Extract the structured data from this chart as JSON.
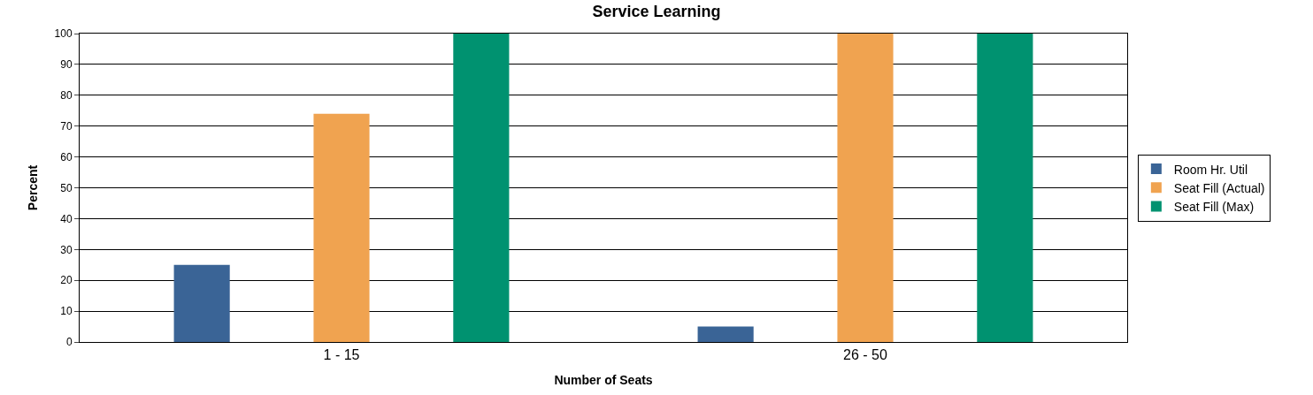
{
  "chart_data": {
    "type": "bar",
    "title": "Service Learning",
    "xlabel": "Number of Seats",
    "ylabel": "Percent",
    "categories": [
      "1 - 15",
      "26 - 50"
    ],
    "series": [
      {
        "name": "Room Hr. Util",
        "color": "#3a6496",
        "values": [
          25,
          5
        ]
      },
      {
        "name": "Seat Fill (Actual)",
        "color": "#f0a350",
        "values": [
          74,
          100
        ]
      },
      {
        "name": "Seat Fill (Max)",
        "color": "#009270",
        "values": [
          100,
          100
        ]
      }
    ],
    "ylim": [
      0,
      100
    ],
    "yticks": [
      0,
      10,
      20,
      30,
      40,
      50,
      60,
      70,
      80,
      90,
      100
    ],
    "grid": "y",
    "legend": "right"
  }
}
